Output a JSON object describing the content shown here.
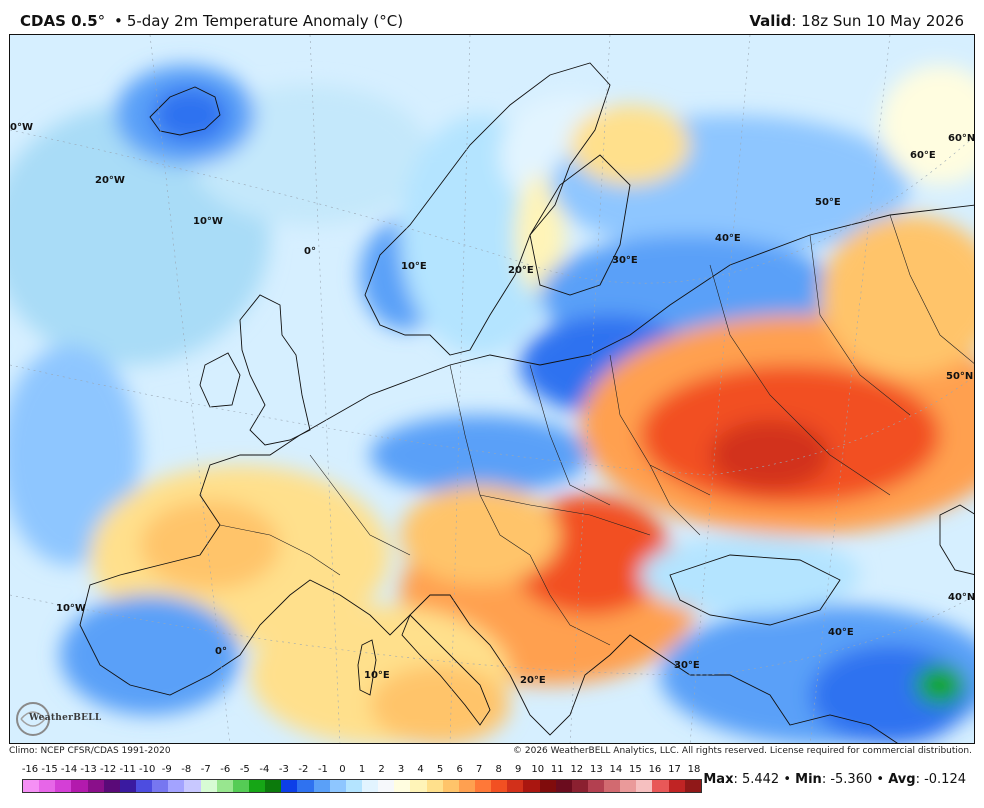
{
  "header": {
    "brand": "CDAS 0.5",
    "brand_degree": "°",
    "bullet": "•",
    "product": "5-day 2m Temperature Anomaly (",
    "unit": "°C",
    "product_close": ")",
    "valid_label": "Valid",
    "valid_value": ": 18z Sun 10 May 2026"
  },
  "map": {
    "longitude_labels": [
      "0°W",
      "20°W",
      "10°W",
      "0°",
      "10°E",
      "20°E",
      "30°E",
      "40°E",
      "50°E",
      "60°E",
      "60°N",
      "50°N",
      "40°N",
      "10°W",
      "0°",
      "10°E",
      "20°E",
      "30°E",
      "40°E"
    ],
    "logo_text": "WeatherBELL"
  },
  "footer": {
    "climo": "Climo: NCEP CFSR/CDAS 1991-2020",
    "copyright": "© 2026 WeatherBELL Analytics, LLC. All rights reserved. License required for commercial distribution."
  },
  "colorbar": {
    "labels": [
      "-16",
      "-15",
      "-14",
      "-13",
      "-12",
      "-11",
      "-10",
      "-9",
      "-8",
      "-7",
      "-6",
      "-5",
      "-4",
      "-3",
      "-2",
      "-1",
      "0",
      "1",
      "2",
      "3",
      "4",
      "5",
      "6",
      "7",
      "8",
      "9",
      "10",
      "11",
      "12",
      "13",
      "14",
      "15",
      "16",
      "17",
      "18"
    ],
    "colors": [
      "#f590f5",
      "#e766e8",
      "#d43fd6",
      "#b31aad",
      "#8a0f8a",
      "#5a0a78",
      "#3a1aa0",
      "#4d4de0",
      "#7777f0",
      "#a3a3ff",
      "#c8c8ff",
      "#d7fbd4",
      "#98e68f",
      "#55cc55",
      "#16a616",
      "#0c7a0c",
      "#0d3fe8",
      "#2f72f0",
      "#5aa0f8",
      "#8ec6ff",
      "#b4e4ff",
      "#e2f4ff",
      "#f6f8fb",
      "#fffde0",
      "#fff4b8",
      "#ffe08c",
      "#ffc46a",
      "#ffa050",
      "#ff7838",
      "#f25022",
      "#d2301a",
      "#aa1610",
      "#800c0c",
      "#6b0c1e",
      "#8b2030",
      "#b34050",
      "#d26a70",
      "#ea9a9a",
      "#f6c0c0",
      "#e85858",
      "#c02424",
      "#901818"
    ]
  },
  "stats": {
    "max_label": "Max",
    "max_value": ": 5.442",
    "min_label": "Min",
    "min_value": ": -5.360",
    "avg_label": "Avg",
    "avg_value": ": -0.124",
    "bullet": "•"
  }
}
